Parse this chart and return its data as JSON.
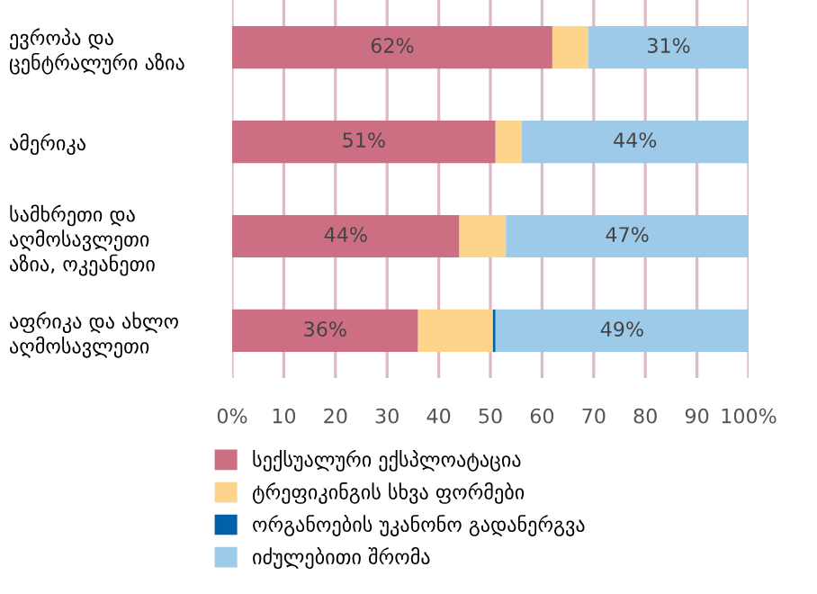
{
  "chart_data": {
    "type": "bar",
    "orientation": "horizontal",
    "stacked": true,
    "categories": [
      "ევროპა და\nცენტრალური აზია",
      "ამერიკა",
      "სამხრეთი და\nაღმოსავლეთი\nაზია, ოკეანეთი",
      "აფრიკა და ახლო\nაღმოსავლეთი"
    ],
    "series": [
      {
        "name": "სექსუალური ექსპლოატაცია",
        "color": "#cc6f82",
        "values": [
          62,
          51,
          44,
          36
        ],
        "value_labels": [
          "62%",
          "51%",
          "44%",
          "36%"
        ]
      },
      {
        "name": "ტრეფიკინგის სხვა ფორმები",
        "color": "#fdd48c",
        "values": [
          7,
          5,
          9,
          14.5
        ]
      },
      {
        "name": "ორგანოების უკანონო გადანერგვა",
        "color": "#0060a8",
        "values": [
          0,
          0,
          0,
          0.5
        ]
      },
      {
        "name": "იძულებითი შრომა",
        "color": "#9dcae8",
        "values": [
          31,
          44,
          47,
          49
        ],
        "value_labels": [
          "31%",
          "44%",
          "47%",
          "49%"
        ]
      }
    ],
    "xlim": [
      0,
      100
    ],
    "xticks": [
      {
        "value": 0,
        "label": "0%"
      },
      10,
      20,
      30,
      40,
      50,
      60,
      70,
      80,
      90,
      {
        "value": 100,
        "label": "100%"
      }
    ],
    "grid": "x",
    "legend": "bottom"
  }
}
